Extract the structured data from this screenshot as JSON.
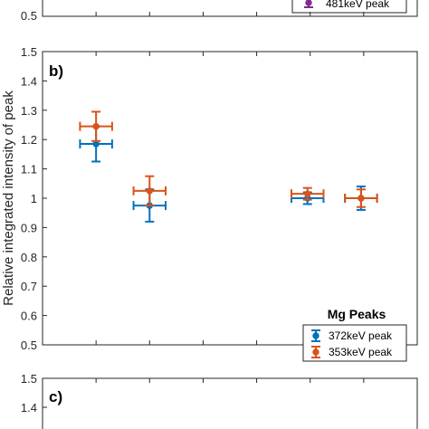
{
  "chart_data": [
    {
      "panel": "a",
      "type": "scatter",
      "ylim": [
        0.5,
        1.5
      ],
      "visible_y_ticks": [
        "0.5"
      ],
      "legend_entries": [
        {
          "name": "481keV peak",
          "color": "#7e2f8e"
        }
      ]
    },
    {
      "panel": "b",
      "type": "scatter",
      "panel_label": "b)",
      "ylabel": "Relative integrated intensity of peak",
      "ylim": [
        0.5,
        1.5
      ],
      "y_ticks": [
        "0.5",
        "0.6",
        "0.7",
        "0.8",
        "0.9",
        "1",
        "1.1",
        "1.2",
        "1.3",
        "1.4",
        "1.5"
      ],
      "grid": false,
      "legend_title": "Mg Peaks",
      "legend_position": "bottom-right",
      "series": [
        {
          "name": "372keV peak",
          "color": "#0072bd",
          "points": [
            {
              "x": 1.0,
              "y": 1.185,
              "yerr": 0.06,
              "xerr": 0.3
            },
            {
              "x": 2.0,
              "y": 0.975,
              "yerr": 0.055,
              "xerr": 0.3
            },
            {
              "x": 4.95,
              "y": 1.0,
              "yerr": 0.02,
              "xerr": 0.3
            },
            {
              "x": 5.95,
              "y": 1.0,
              "yerr": 0.04,
              "xerr": 0.3
            }
          ]
        },
        {
          "name": "353keV peak",
          "color": "#d95319",
          "points": [
            {
              "x": 1.0,
              "y": 1.245,
              "yerr": 0.05,
              "xerr": 0.3
            },
            {
              "x": 2.0,
              "y": 1.025,
              "yerr": 0.05,
              "xerr": 0.3
            },
            {
              "x": 4.95,
              "y": 1.015,
              "yerr": 0.02,
              "xerr": 0.3
            },
            {
              "x": 5.95,
              "y": 1.0,
              "yerr": 0.03,
              "xerr": 0.3
            }
          ]
        }
      ]
    },
    {
      "panel": "c",
      "type": "scatter",
      "panel_label": "c)",
      "ylim": [
        0.5,
        1.5
      ],
      "visible_y_ticks": [
        "1.5",
        "1.4"
      ]
    }
  ]
}
